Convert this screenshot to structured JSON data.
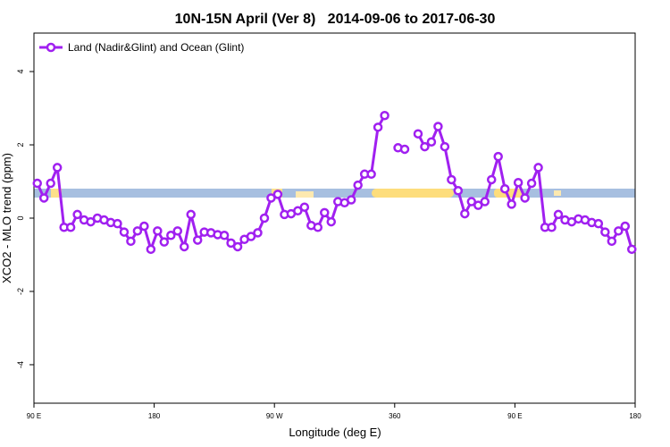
{
  "chart_data": {
    "type": "line",
    "title": "10N-15N April (Ver 8)   2014-09-06 to 2017-06-30",
    "x_label": "Longitude (deg E)",
    "y_label": "XCO2 - MLO trend (ppm)",
    "xlim": [
      90,
      540
    ],
    "ylim": [
      -5.05,
      5.05
    ],
    "xticks": [
      {
        "value": 90,
        "label": "90 E"
      },
      180,
      {
        "value": 270,
        "label": "90 W"
      },
      360,
      {
        "value": 450,
        "label": "90 E"
      },
      {
        "value": 540,
        "label": "180"
      }
    ],
    "yticks": [
      -4,
      -2,
      0,
      2,
      4
    ],
    "legend": "top-left",
    "x": [
      92.5,
      97.5,
      102.5,
      107.5,
      112.5,
      117.5,
      122.5,
      127.5,
      132.5,
      137.5,
      142.5,
      147.5,
      152.5,
      157.5,
      162.5,
      167.5,
      172.5,
      177.5,
      182.5,
      187.5,
      192.5,
      197.5,
      202.5,
      207.5,
      212.5,
      217.5,
      222.5,
      227.5,
      232.5,
      237.5,
      242.5,
      247.5,
      252.5,
      257.5,
      262.5,
      267.5,
      272.5,
      277.5,
      282.5,
      287.5,
      292.5,
      297.5,
      302.5,
      307.5,
      312.5,
      317.5,
      322.5,
      327.5,
      332.5,
      337.5,
      342.5,
      347.5,
      352.5,
      357.5,
      362.5,
      367.5,
      372.5,
      377.5,
      382.5,
      387.5,
      392.5,
      397.5,
      402.5,
      407.5,
      412.5,
      417.5,
      422.5,
      427.5,
      432.5,
      437.5,
      442.5,
      447.5,
      452.5,
      457.5,
      462.5,
      467.5,
      472.5,
      477.5,
      482.5,
      487.5,
      492.5,
      497.5,
      502.5,
      507.5,
      512.5,
      517.5,
      522.5,
      527.5,
      532.5,
      537.5
    ],
    "series": [
      {
        "name": "Land (Nadir&Glint) and Ocean (Glint)",
        "color": "#a020f0",
        "values": [
          0.95,
          0.55,
          0.95,
          1.38,
          -0.25,
          -0.25,
          0.1,
          -0.05,
          -0.1,
          0.0,
          -0.05,
          -0.12,
          -0.15,
          -0.38,
          -0.63,
          -0.35,
          -0.22,
          -0.85,
          -0.35,
          -0.65,
          -0.47,
          -0.35,
          -0.78,
          0.1,
          -0.6,
          -0.38,
          -0.4,
          -0.45,
          -0.47,
          -0.68,
          -0.78,
          -0.58,
          -0.5,
          -0.4,
          0.0,
          0.55,
          0.65,
          0.1,
          0.12,
          0.2,
          0.3,
          -0.2,
          -0.25,
          0.15,
          -0.1,
          0.45,
          0.42,
          0.5,
          0.9,
          1.2,
          1.2,
          2.48,
          2.8,
          null,
          1.92,
          1.88,
          null,
          2.3,
          1.95,
          2.08,
          2.5,
          1.95,
          1.05,
          0.75,
          0.12,
          0.45,
          0.35,
          0.45,
          1.05,
          1.68,
          0.8,
          0.38,
          0.97,
          0.55,
          0.95,
          1.38,
          -0.25,
          -0.25,
          0.1,
          -0.05,
          -0.1,
          -0.02,
          -0.05,
          -0.12,
          -0.15,
          -0.38,
          -0.63,
          -0.35,
          -0.22,
          -0.85
        ]
      }
    ]
  }
}
